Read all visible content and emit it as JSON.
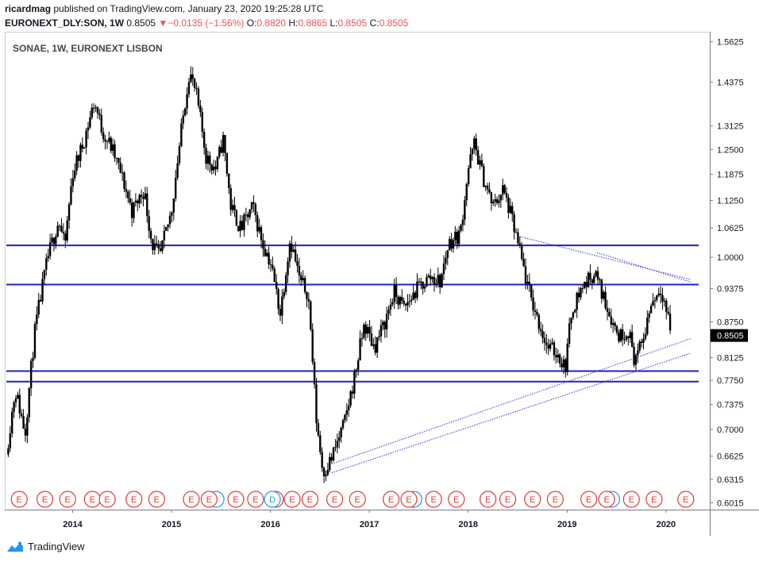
{
  "header": {
    "publisher": "ricardmag",
    "published_text": "published on TradingView.com, January 23, 2020 19:25:28 UTC",
    "symbol": "EURONEXT_DLY:SON, 1W",
    "last": "0.8505",
    "change_arrow": "▼",
    "change": "−0.0135 (−1.56%)",
    "o_label": "O:",
    "o_value": "0.8820",
    "h_label": "H:",
    "h_value": "0.8865",
    "l_label": "L:",
    "l_value": "0.8505",
    "c_label": "C:",
    "c_value": "0.8505"
  },
  "chart_data": {
    "type": "candlestick",
    "title": "SONAE, 1W, EURONEXT LISBON",
    "price_scale": "log",
    "ylim": [
      0.595,
      1.59
    ],
    "yticks": [
      "1.5625",
      "1.4375",
      "1.3125",
      "1.2500",
      "1.1875",
      "1.1250",
      "1.0625",
      "1.0000",
      "0.9375",
      "0.8750",
      "0.8125",
      "0.7750",
      "0.7375",
      "0.7000",
      "0.6625",
      "0.6315",
      "0.6015"
    ],
    "xlim": [
      2013.33,
      2020.33
    ],
    "xticks": [
      {
        "label": "2014",
        "x": 2014.0
      },
      {
        "label": "2015",
        "x": 2015.0
      },
      {
        "label": "2016",
        "x": 2016.0
      },
      {
        "label": "2017",
        "x": 2017.0
      },
      {
        "label": "2018",
        "x": 2018.0
      },
      {
        "label": "2019",
        "x": 2019.0
      },
      {
        "label": "2020",
        "x": 2020.0
      }
    ],
    "last_price_label": "0.8505",
    "price_path": [
      [
        2013.33,
        0.665
      ],
      [
        2013.42,
        0.76
      ],
      [
        2013.52,
        0.695
      ],
      [
        2013.62,
        0.86
      ],
      [
        2013.75,
        1.0
      ],
      [
        2013.86,
        1.08
      ],
      [
        2013.92,
        1.02
      ],
      [
        2014.0,
        1.19
      ],
      [
        2014.1,
        1.26
      ],
      [
        2014.22,
        1.38
      ],
      [
        2014.3,
        1.3
      ],
      [
        2014.4,
        1.25
      ],
      [
        2014.5,
        1.18
      ],
      [
        2014.6,
        1.1
      ],
      [
        2014.72,
        1.15
      ],
      [
        2014.8,
        1.03
      ],
      [
        2014.88,
        1.0
      ],
      [
        2015.0,
        1.1
      ],
      [
        2015.1,
        1.3
      ],
      [
        2015.18,
        1.47
      ],
      [
        2015.25,
        1.4
      ],
      [
        2015.35,
        1.23
      ],
      [
        2015.45,
        1.2
      ],
      [
        2015.52,
        1.28
      ],
      [
        2015.6,
        1.11
      ],
      [
        2015.7,
        1.06
      ],
      [
        2015.82,
        1.11
      ],
      [
        2015.92,
        1.03
      ],
      [
        2016.0,
        0.99
      ],
      [
        2016.1,
        0.89
      ],
      [
        2016.2,
        1.04
      ],
      [
        2016.3,
        0.95
      ],
      [
        2016.38,
        0.93
      ],
      [
        2016.46,
        0.72
      ],
      [
        2016.53,
        0.64
      ],
      [
        2016.62,
        0.66
      ],
      [
        2016.75,
        0.71
      ],
      [
        2016.85,
        0.78
      ],
      [
        2016.95,
        0.87
      ],
      [
        2017.05,
        0.83
      ],
      [
        2017.15,
        0.87
      ],
      [
        2017.25,
        0.93
      ],
      [
        2017.35,
        0.9
      ],
      [
        2017.5,
        0.94
      ],
      [
        2017.62,
        0.96
      ],
      [
        2017.72,
        0.95
      ],
      [
        2017.8,
        1.03
      ],
      [
        2017.92,
        1.05
      ],
      [
        2018.0,
        1.2
      ],
      [
        2018.06,
        1.265
      ],
      [
        2018.15,
        1.18
      ],
      [
        2018.25,
        1.11
      ],
      [
        2018.35,
        1.15
      ],
      [
        2018.42,
        1.1
      ],
      [
        2018.5,
        1.03
      ],
      [
        2018.6,
        0.94
      ],
      [
        2018.7,
        0.88
      ],
      [
        2018.8,
        0.83
      ],
      [
        2018.9,
        0.82
      ],
      [
        2018.98,
        0.795
      ],
      [
        2019.05,
        0.9
      ],
      [
        2019.15,
        0.94
      ],
      [
        2019.28,
        0.97
      ],
      [
        2019.35,
        0.93
      ],
      [
        2019.45,
        0.88
      ],
      [
        2019.52,
        0.85
      ],
      [
        2019.62,
        0.86
      ],
      [
        2019.68,
        0.81
      ],
      [
        2019.75,
        0.83
      ],
      [
        2019.85,
        0.91
      ],
      [
        2019.95,
        0.94
      ],
      [
        2020.0,
        0.9
      ],
      [
        2020.06,
        0.85
      ]
    ],
    "horizontal_levels": [
      1.025,
      0.945,
      0.79,
      0.773
    ],
    "trend_lines": [
      {
        "from": [
          2016.62,
          0.652
        ],
        "to": [
          2020.25,
          0.845
        ]
      },
      {
        "from": [
          2016.62,
          0.64
        ],
        "to": [
          2020.25,
          0.82
        ]
      },
      {
        "from": [
          2018.5,
          1.045
        ],
        "to": [
          2020.25,
          0.955
        ]
      },
      {
        "from": [
          2019.3,
          1.01
        ],
        "to": [
          2020.25,
          0.95
        ]
      }
    ],
    "earnings_markers": {
      "label": "E",
      "dividend_label": "D",
      "x": [
        2013.46,
        2013.72,
        2013.95,
        2014.2,
        2014.35,
        2014.62,
        2014.85,
        2015.2,
        2015.38,
        2015.65,
        2015.85,
        2016.05,
        2016.22,
        2016.4,
        2016.65,
        2016.88,
        2017.22,
        2017.4,
        2017.65,
        2017.88,
        2018.2,
        2018.4,
        2018.65,
        2018.88,
        2019.22,
        2019.4,
        2019.65,
        2019.88,
        2020.2
      ],
      "dividend_x": [
        2016.02
      ],
      "blue_ring_x": [
        2015.45,
        2017.45,
        2019.45
      ]
    }
  },
  "footer": {
    "brand": "TradingView"
  },
  "colors": {
    "level_line": "#1f1fc8",
    "trend_line": "#3333dd",
    "earn_red": "#e53935",
    "earn_blue": "#2196f3",
    "candle": "#000000",
    "last_bg": "#000000"
  }
}
